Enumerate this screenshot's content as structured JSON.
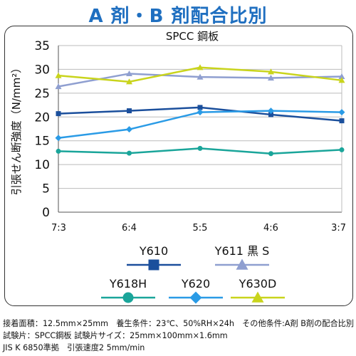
{
  "title": "A 剤・B 剤配合比別",
  "chart_data": {
    "type": "line",
    "title": "SPCC 鋼板",
    "ylabel": "引張せん断強度（N/mm²）",
    "xlabel": "",
    "categories": [
      "7:3",
      "6:4",
      "5:5",
      "4:6",
      "3:7"
    ],
    "ylim": [
      0,
      35
    ],
    "yticks": [
      "0",
      "5",
      "10",
      "15",
      "20",
      "25",
      "30",
      "35"
    ],
    "grid": true,
    "legend_position": "bottom",
    "series": [
      {
        "name": "Y610",
        "values": [
          20.7,
          21.3,
          22.0,
          20.5,
          19.2
        ],
        "color": "#1b4f9c",
        "marker": "square"
      },
      {
        "name": "Y611 黒 S",
        "values": [
          26.4,
          29.1,
          28.4,
          28.2,
          28.5
        ],
        "color": "#8f9fd0",
        "marker": "triangle-up"
      },
      {
        "name": "Y618H",
        "values": [
          12.8,
          12.4,
          13.4,
          12.3,
          13.1
        ],
        "color": "#1aa59a",
        "marker": "circle"
      },
      {
        "name": "Y620",
        "values": [
          15.6,
          17.4,
          21.0,
          21.3,
          21.0
        ],
        "color": "#2a9be6",
        "marker": "diamond"
      },
      {
        "name": "Y630D",
        "values": [
          28.7,
          27.4,
          30.4,
          29.5,
          27.7
        ],
        "color": "#c9d41c",
        "marker": "triangle-up"
      }
    ]
  },
  "notes": [
    "接着面積：12.5mm×25mm　養生条件：23℃、50%RH×24h　その他条件:A剤 B剤の配合比別",
    "試験片：SPCC鋼板  試験片サイズ：25mm×100mm×1.6mm",
    "JIS K 6850準拠　引張速度2 5mm/min"
  ]
}
